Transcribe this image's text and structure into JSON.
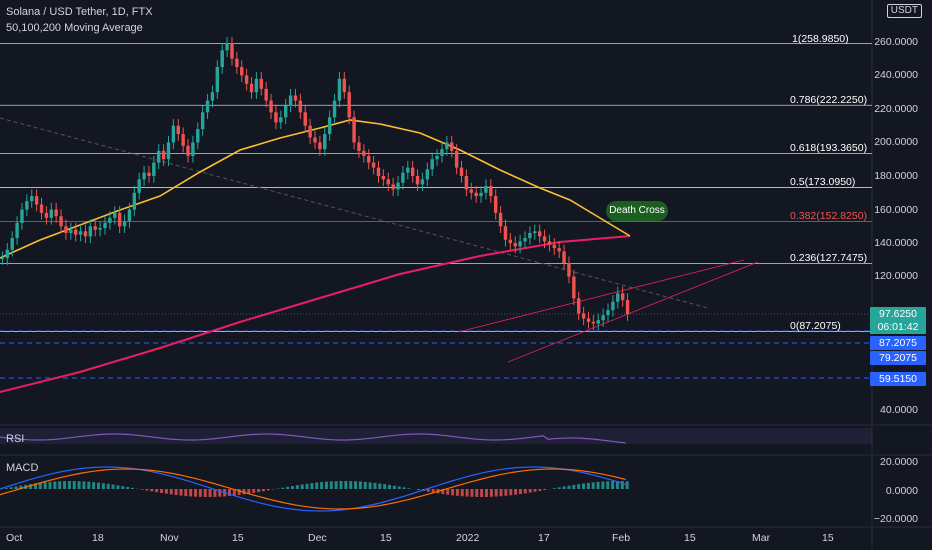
{
  "legend": {
    "symbol_line": "Solana / USD Tether, 1D, FTX",
    "ma_line": "50,100,200 Moving Average"
  },
  "currency": "USDT",
  "price_axis": {
    "ticks": [
      "260.0000",
      "240.0000",
      "220.0000",
      "200.0000",
      "180.0000",
      "160.0000",
      "140.0000",
      "120.0000",
      "40.0000"
    ]
  },
  "badges": {
    "last_price": "97.6250",
    "countdown": "06:01:42",
    "level1": "87.2075",
    "level2": "79.2075",
    "level3": "59.5150",
    "colors": {
      "last": "#26a69a",
      "level": "#2962ff"
    }
  },
  "fib": [
    {
      "label": "1(258.9850)",
      "value": 258.985,
      "color": "#ffffff"
    },
    {
      "label": "0.786(222.2250)",
      "value": 222.225,
      "color": "#ffffff"
    },
    {
      "label": "0.618(193.3650)",
      "value": 193.365,
      "color": "#ffffff"
    },
    {
      "label": "0.5(173.0950)",
      "value": 173.095,
      "color": "#ffffff"
    },
    {
      "label": "0.382(152.8250)",
      "value": 152.825,
      "color": "#ef5350"
    },
    {
      "label": "0.236(127.7475)",
      "value": 127.7475,
      "color": "#ffffff"
    },
    {
      "label": "0(87.2075)",
      "value": 87.2075,
      "color": "#ffffff"
    }
  ],
  "annotation": {
    "death_cross": "Death Cross"
  },
  "rsi": {
    "label": "RSI"
  },
  "macd": {
    "label": "MACD",
    "ticks": [
      "20.0000",
      "0.0000",
      "−20.0000"
    ]
  },
  "time_axis": [
    "Oct",
    "18",
    "Nov",
    "15",
    "Dec",
    "15",
    "2022",
    "17",
    "Feb",
    "15",
    "Mar",
    "15"
  ],
  "chart_data": {
    "type": "line",
    "title": "Solana / USD Tether, 1D, FTX",
    "series": [
      {
        "name": "50,100,200 Moving Average",
        "values": []
      }
    ],
    "close_series": [
      131,
      136,
      143,
      152,
      160,
      165,
      168,
      163,
      158,
      155,
      160,
      156,
      150,
      146,
      148,
      145,
      147,
      144,
      150,
      148,
      149,
      152,
      155,
      158,
      150,
      153,
      160,
      170,
      178,
      182,
      180,
      188,
      195,
      190,
      200,
      210,
      205,
      198,
      192,
      200,
      208,
      218,
      225,
      230,
      245,
      255,
      259,
      250,
      245,
      240,
      235,
      230,
      238,
      232,
      225,
      218,
      212,
      215,
      222,
      228,
      225,
      218,
      210,
      203,
      200,
      196,
      205,
      215,
      225,
      238,
      230,
      215,
      200,
      195,
      192,
      188,
      185,
      180,
      178,
      175,
      172,
      176,
      182,
      185,
      180,
      175,
      178,
      184,
      190,
      192,
      196,
      200,
      195,
      185,
      180,
      172,
      170,
      168,
      170,
      174,
      168,
      158,
      150,
      142,
      140,
      138,
      141,
      143,
      146,
      147,
      144,
      141,
      139,
      137,
      135,
      128,
      120,
      107,
      98,
      95,
      93,
      92,
      94,
      97,
      100,
      105,
      110,
      106,
      97.6
    ]
  }
}
